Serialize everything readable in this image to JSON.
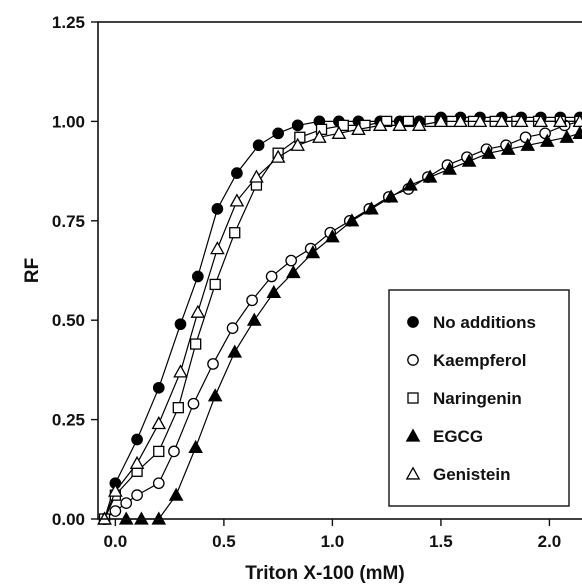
{
  "chart_data": {
    "type": "scatter",
    "title": "",
    "xlabel": "Triton X-100 (mM)",
    "ylabel": "RF",
    "xlim": [
      -0.08,
      2.15
    ],
    "ylim": [
      0,
      1.25
    ],
    "x_ticks": [
      0.0,
      0.5,
      1.0,
      1.5,
      2.0
    ],
    "x_tick_labels": [
      "0.0",
      "0.5",
      "1.0",
      "1.5",
      "2.0"
    ],
    "y_ticks": [
      0,
      0.25,
      0.5,
      0.75,
      1.0,
      1.25
    ],
    "y_tick_labels": [
      "0.00",
      "0.25",
      "0.50",
      "0.75",
      "1.00",
      "1.25"
    ],
    "grid": false,
    "legend_position": "bottom-right",
    "series": [
      {
        "name": "No additions",
        "marker": "circle-filled",
        "color": "#000000",
        "points": [
          {
            "x": -0.05,
            "y": 0.0
          },
          {
            "x": 0.0,
            "y": 0.09
          },
          {
            "x": 0.1,
            "y": 0.2
          },
          {
            "x": 0.2,
            "y": 0.33
          },
          {
            "x": 0.3,
            "y": 0.49
          },
          {
            "x": 0.38,
            "y": 0.61
          },
          {
            "x": 0.47,
            "y": 0.78
          },
          {
            "x": 0.56,
            "y": 0.87
          },
          {
            "x": 0.66,
            "y": 0.94
          },
          {
            "x": 0.75,
            "y": 0.97
          },
          {
            "x": 0.84,
            "y": 0.99
          },
          {
            "x": 0.94,
            "y": 1.0
          },
          {
            "x": 1.03,
            "y": 1.0
          },
          {
            "x": 1.12,
            "y": 1.0
          },
          {
            "x": 1.22,
            "y": 1.0
          },
          {
            "x": 1.31,
            "y": 1.0
          },
          {
            "x": 1.4,
            "y": 1.0
          },
          {
            "x": 1.5,
            "y": 1.01
          },
          {
            "x": 1.59,
            "y": 1.01
          },
          {
            "x": 1.68,
            "y": 1.01
          },
          {
            "x": 1.78,
            "y": 1.01
          },
          {
            "x": 1.87,
            "y": 1.01
          },
          {
            "x": 1.96,
            "y": 1.01
          },
          {
            "x": 2.05,
            "y": 1.01
          },
          {
            "x": 2.14,
            "y": 1.01
          }
        ]
      },
      {
        "name": "Kaempferol",
        "marker": "circle-open",
        "color": "#000000",
        "points": [
          {
            "x": -0.05,
            "y": 0.0
          },
          {
            "x": 0.0,
            "y": 0.02
          },
          {
            "x": 0.05,
            "y": 0.04
          },
          {
            "x": 0.1,
            "y": 0.06
          },
          {
            "x": 0.2,
            "y": 0.09
          },
          {
            "x": 0.27,
            "y": 0.17
          },
          {
            "x": 0.36,
            "y": 0.29
          },
          {
            "x": 0.45,
            "y": 0.39
          },
          {
            "x": 0.54,
            "y": 0.48
          },
          {
            "x": 0.63,
            "y": 0.55
          },
          {
            "x": 0.72,
            "y": 0.61
          },
          {
            "x": 0.81,
            "y": 0.65
          },
          {
            "x": 0.9,
            "y": 0.68
          },
          {
            "x": 0.99,
            "y": 0.72
          },
          {
            "x": 1.08,
            "y": 0.75
          },
          {
            "x": 1.17,
            "y": 0.78
          },
          {
            "x": 1.26,
            "y": 0.81
          },
          {
            "x": 1.35,
            "y": 0.83
          },
          {
            "x": 1.44,
            "y": 0.86
          },
          {
            "x": 1.53,
            "y": 0.89
          },
          {
            "x": 1.62,
            "y": 0.91
          },
          {
            "x": 1.71,
            "y": 0.93
          },
          {
            "x": 1.8,
            "y": 0.94
          },
          {
            "x": 1.89,
            "y": 0.96
          },
          {
            "x": 1.98,
            "y": 0.97
          },
          {
            "x": 2.07,
            "y": 0.99
          },
          {
            "x": 2.14,
            "y": 1.0
          }
        ]
      },
      {
        "name": "Naringenin",
        "marker": "square-open",
        "color": "#000000",
        "points": [
          {
            "x": -0.05,
            "y": 0.0
          },
          {
            "x": 0.0,
            "y": 0.06
          },
          {
            "x": 0.1,
            "y": 0.12
          },
          {
            "x": 0.2,
            "y": 0.17
          },
          {
            "x": 0.29,
            "y": 0.28
          },
          {
            "x": 0.37,
            "y": 0.44
          },
          {
            "x": 0.46,
            "y": 0.59
          },
          {
            "x": 0.55,
            "y": 0.72
          },
          {
            "x": 0.65,
            "y": 0.84
          },
          {
            "x": 0.75,
            "y": 0.92
          },
          {
            "x": 0.85,
            "y": 0.96
          },
          {
            "x": 0.95,
            "y": 0.98
          },
          {
            "x": 1.05,
            "y": 0.99
          },
          {
            "x": 1.15,
            "y": 0.99
          },
          {
            "x": 1.25,
            "y": 1.0
          },
          {
            "x": 1.35,
            "y": 1.0
          },
          {
            "x": 1.45,
            "y": 1.0
          },
          {
            "x": 1.55,
            "y": 1.0
          },
          {
            "x": 1.65,
            "y": 1.0
          },
          {
            "x": 1.75,
            "y": 1.0
          },
          {
            "x": 1.85,
            "y": 1.0
          },
          {
            "x": 1.95,
            "y": 1.0
          },
          {
            "x": 2.05,
            "y": 1.0
          },
          {
            "x": 2.14,
            "y": 1.0
          }
        ]
      },
      {
        "name": "EGCG",
        "marker": "triangle-filled",
        "color": "#000000",
        "points": [
          {
            "x": -0.05,
            "y": 0.0
          },
          {
            "x": 0.05,
            "y": 0.0
          },
          {
            "x": 0.12,
            "y": 0.0
          },
          {
            "x": 0.2,
            "y": 0.0
          },
          {
            "x": 0.28,
            "y": 0.06
          },
          {
            "x": 0.37,
            "y": 0.18
          },
          {
            "x": 0.46,
            "y": 0.31
          },
          {
            "x": 0.55,
            "y": 0.42
          },
          {
            "x": 0.64,
            "y": 0.5
          },
          {
            "x": 0.73,
            "y": 0.57
          },
          {
            "x": 0.82,
            "y": 0.62
          },
          {
            "x": 0.91,
            "y": 0.67
          },
          {
            "x": 1.0,
            "y": 0.71
          },
          {
            "x": 1.09,
            "y": 0.75
          },
          {
            "x": 1.18,
            "y": 0.78
          },
          {
            "x": 1.27,
            "y": 0.81
          },
          {
            "x": 1.36,
            "y": 0.84
          },
          {
            "x": 1.45,
            "y": 0.86
          },
          {
            "x": 1.54,
            "y": 0.88
          },
          {
            "x": 1.63,
            "y": 0.9
          },
          {
            "x": 1.72,
            "y": 0.92
          },
          {
            "x": 1.81,
            "y": 0.93
          },
          {
            "x": 1.9,
            "y": 0.94
          },
          {
            "x": 1.99,
            "y": 0.95
          },
          {
            "x": 2.08,
            "y": 0.96
          },
          {
            "x": 2.14,
            "y": 0.97
          }
        ]
      },
      {
        "name": "Genistein",
        "marker": "triangle-open",
        "color": "#000000",
        "points": [
          {
            "x": -0.05,
            "y": 0.0
          },
          {
            "x": 0.0,
            "y": 0.07
          },
          {
            "x": 0.1,
            "y": 0.14
          },
          {
            "x": 0.2,
            "y": 0.24
          },
          {
            "x": 0.3,
            "y": 0.37
          },
          {
            "x": 0.38,
            "y": 0.52
          },
          {
            "x": 0.47,
            "y": 0.68
          },
          {
            "x": 0.56,
            "y": 0.8
          },
          {
            "x": 0.65,
            "y": 0.86
          },
          {
            "x": 0.75,
            "y": 0.91
          },
          {
            "x": 0.84,
            "y": 0.94
          },
          {
            "x": 0.94,
            "y": 0.96
          },
          {
            "x": 1.03,
            "y": 0.97
          },
          {
            "x": 1.12,
            "y": 0.98
          },
          {
            "x": 1.22,
            "y": 0.99
          },
          {
            "x": 1.31,
            "y": 0.99
          },
          {
            "x": 1.4,
            "y": 0.99
          },
          {
            "x": 1.5,
            "y": 1.0
          },
          {
            "x": 1.59,
            "y": 1.0
          },
          {
            "x": 1.68,
            "y": 1.0
          },
          {
            "x": 1.78,
            "y": 1.0
          },
          {
            "x": 1.87,
            "y": 1.0
          },
          {
            "x": 1.96,
            "y": 1.0
          },
          {
            "x": 2.05,
            "y": 1.0
          },
          {
            "x": 2.14,
            "y": 1.0
          }
        ]
      }
    ]
  }
}
